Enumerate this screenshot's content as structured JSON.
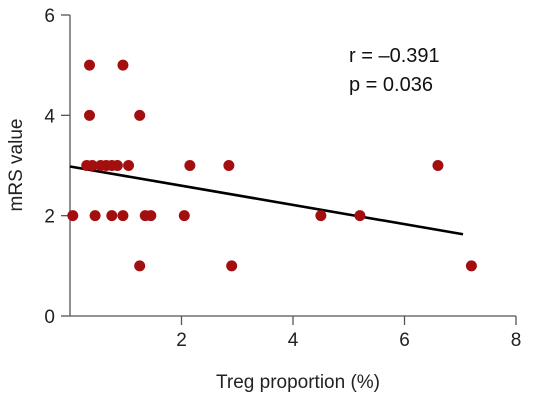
{
  "chart_data": {
    "type": "scatter",
    "xlabel": "Treg proportion (%)",
    "ylabel": "mRS value",
    "xlim": [
      0,
      8
    ],
    "ylim": [
      0,
      6
    ],
    "xticks": [
      2,
      4,
      6,
      8
    ],
    "yticks": [
      0,
      2,
      4,
      6
    ],
    "grid": false,
    "annotations": {
      "r_text": "r = –0.391",
      "p_text": "p = 0.036"
    },
    "points": [
      {
        "x": 0.05,
        "y": 2
      },
      {
        "x": 0.3,
        "y": 3
      },
      {
        "x": 0.35,
        "y": 5
      },
      {
        "x": 0.35,
        "y": 4
      },
      {
        "x": 0.4,
        "y": 3
      },
      {
        "x": 0.45,
        "y": 2
      },
      {
        "x": 0.55,
        "y": 3
      },
      {
        "x": 0.65,
        "y": 3
      },
      {
        "x": 0.75,
        "y": 3
      },
      {
        "x": 0.75,
        "y": 2
      },
      {
        "x": 0.85,
        "y": 3
      },
      {
        "x": 0.95,
        "y": 5
      },
      {
        "x": 0.95,
        "y": 2
      },
      {
        "x": 1.05,
        "y": 3
      },
      {
        "x": 1.25,
        "y": 4
      },
      {
        "x": 1.25,
        "y": 1
      },
      {
        "x": 1.35,
        "y": 2
      },
      {
        "x": 1.45,
        "y": 2
      },
      {
        "x": 2.05,
        "y": 2
      },
      {
        "x": 2.15,
        "y": 3
      },
      {
        "x": 2.85,
        "y": 3
      },
      {
        "x": 2.9,
        "y": 1
      },
      {
        "x": 4.5,
        "y": 2
      },
      {
        "x": 5.2,
        "y": 2
      },
      {
        "x": 6.6,
        "y": 3
      },
      {
        "x": 7.2,
        "y": 1
      }
    ],
    "trendline": {
      "x": [
        0,
        7.05
      ],
      "y": [
        2.98,
        1.63
      ]
    },
    "colors": {
      "points": "#a30e0e",
      "trendline": "#000000",
      "axis": "#555555"
    }
  }
}
